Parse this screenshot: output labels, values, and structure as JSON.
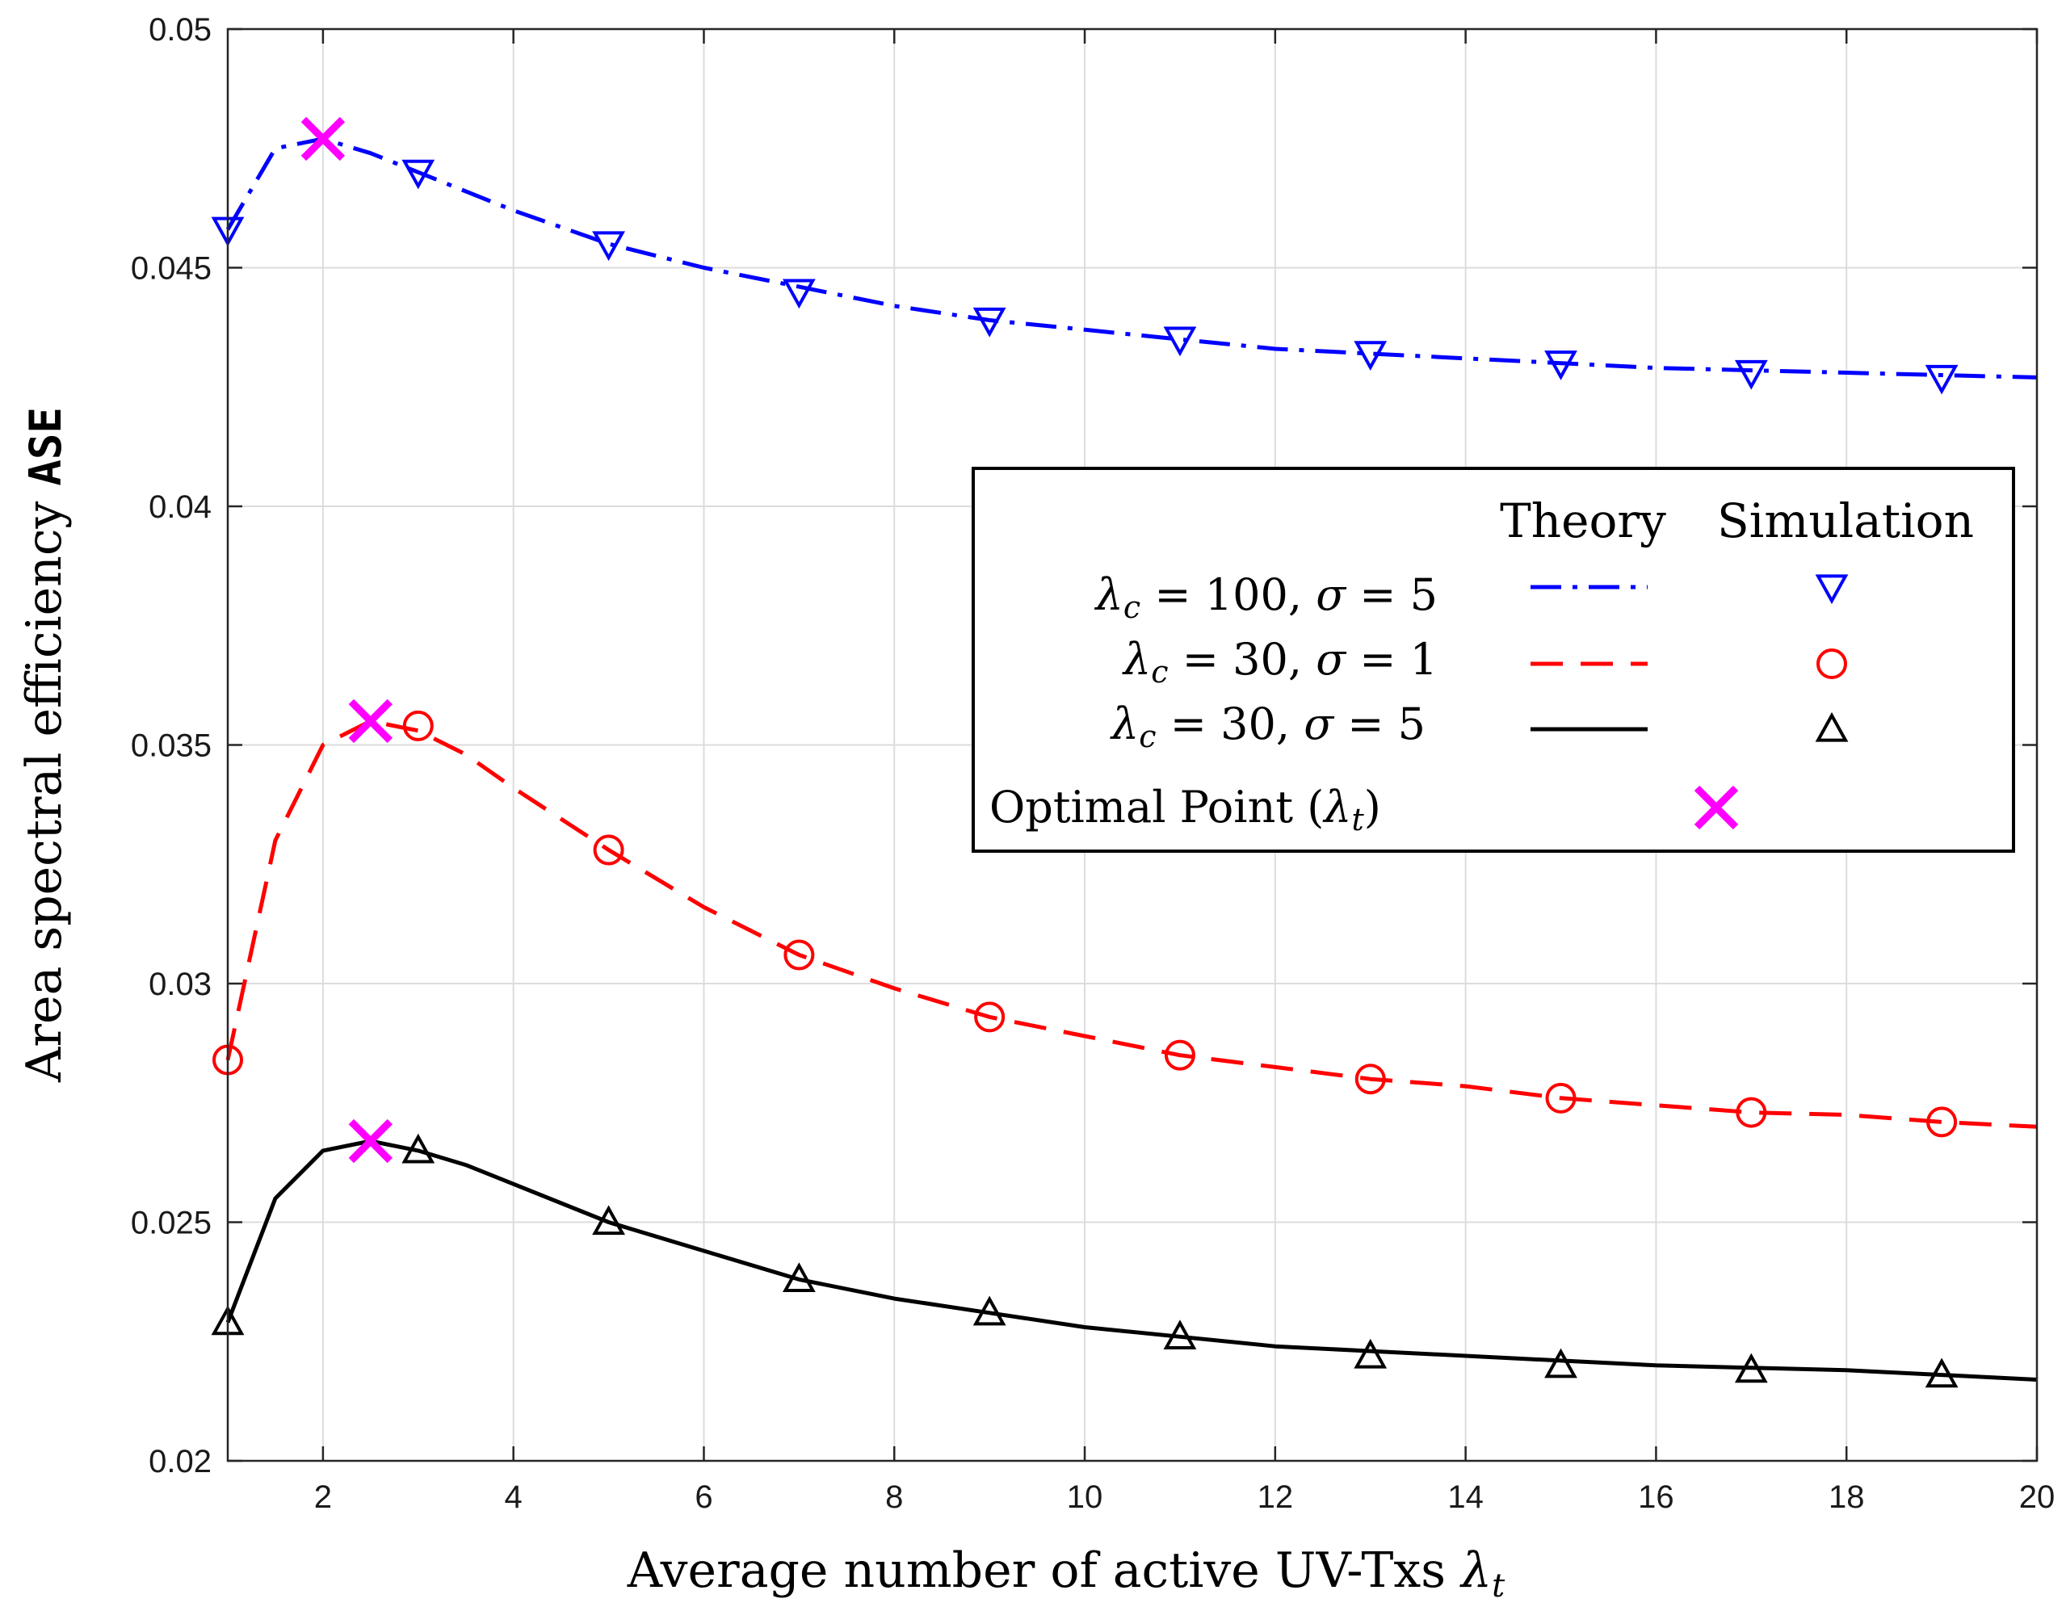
{
  "chart_data": {
    "type": "line",
    "title": "",
    "xlabel": "Average number of active UV-Txs",
    "xlabel_symbol": "λ",
    "xlabel_symbol_sub": "t",
    "ylabel": "Area spectral efficiency",
    "ylabel_mono": "ASE",
    "xlim": [
      1,
      20
    ],
    "ylim": [
      0.02,
      0.05
    ],
    "xticks": [
      2,
      4,
      6,
      8,
      10,
      12,
      14,
      16,
      18,
      20
    ],
    "yticks": [
      0.02,
      0.025,
      0.03,
      0.035,
      0.04,
      0.045,
      0.05
    ],
    "ytick_labels": [
      "0.02",
      "0.025",
      "0.03",
      "0.035",
      "0.04",
      "0.045",
      "0.05"
    ],
    "grid": true,
    "legend_position": "top-right",
    "legend_headers": {
      "theory": "Theory",
      "simulation": "Simulation"
    },
    "series": [
      {
        "name": "λc = 100, σ = 5",
        "legend_label": "λ_c = 100, σ = 5",
        "color": "#0000ff",
        "line_style": "dash-dot",
        "marker": "triangle-down",
        "theory_x": [
          1,
          1.5,
          2,
          2.5,
          3,
          3.5,
          4,
          5,
          6,
          7,
          8,
          9,
          10,
          11,
          12,
          13,
          14,
          15,
          16,
          17,
          18,
          19,
          20
        ],
        "theory_y": [
          0.0458,
          0.0475,
          0.0477,
          0.0474,
          0.047,
          0.0466,
          0.0462,
          0.0455,
          0.045,
          0.0446,
          0.0442,
          0.0439,
          0.0437,
          0.0435,
          0.0433,
          0.0432,
          0.0431,
          0.043,
          0.0429,
          0.04285,
          0.0428,
          0.04275,
          0.0427
        ],
        "sim_x": [
          1,
          3,
          5,
          7,
          9,
          11,
          13,
          15,
          17,
          19
        ],
        "sim_y": [
          0.0458,
          0.047,
          0.0455,
          0.0445,
          0.0439,
          0.0435,
          0.0432,
          0.043,
          0.0428,
          0.0427
        ]
      },
      {
        "name": "λc = 30, σ = 1",
        "legend_label": "λ_c = 30, σ = 1",
        "color": "#ff0000",
        "line_style": "dashed",
        "marker": "circle",
        "theory_x": [
          1,
          1.5,
          2,
          2.5,
          3,
          3.5,
          4,
          5,
          6,
          7,
          8,
          9,
          10,
          11,
          12,
          13,
          14,
          15,
          16,
          17,
          18,
          19,
          20
        ],
        "theory_y": [
          0.0284,
          0.033,
          0.035,
          0.0355,
          0.0353,
          0.0348,
          0.0341,
          0.0328,
          0.0316,
          0.0306,
          0.0299,
          0.0293,
          0.0289,
          0.0285,
          0.02825,
          0.028,
          0.02785,
          0.0276,
          0.02745,
          0.0273,
          0.02725,
          0.0271,
          0.027
        ],
        "sim_x": [
          1,
          3,
          5,
          7,
          9,
          11,
          13,
          15,
          17,
          19
        ],
        "sim_y": [
          0.0284,
          0.0354,
          0.0328,
          0.0306,
          0.0293,
          0.0285,
          0.028,
          0.0276,
          0.0273,
          0.0271
        ]
      },
      {
        "name": "λc = 30, σ = 5",
        "legend_label": "λ_c = 30, σ = 5",
        "color": "#000000",
        "line_style": "solid",
        "marker": "triangle-up",
        "theory_x": [
          1,
          1.5,
          2,
          2.5,
          3,
          3.5,
          4,
          5,
          6,
          7,
          8,
          9,
          10,
          11,
          12,
          13,
          14,
          15,
          16,
          17,
          18,
          19,
          20
        ],
        "theory_y": [
          0.0229,
          0.0255,
          0.0265,
          0.0267,
          0.0265,
          0.0262,
          0.0258,
          0.025,
          0.0244,
          0.0238,
          0.0234,
          0.0231,
          0.0228,
          0.0226,
          0.0224,
          0.0223,
          0.0222,
          0.0221,
          0.022,
          0.02195,
          0.0219,
          0.0218,
          0.0217
        ],
        "sim_x": [
          1,
          3,
          5,
          7,
          9,
          11,
          13,
          15,
          17,
          19
        ],
        "sim_y": [
          0.0229,
          0.0265,
          0.025,
          0.0238,
          0.0231,
          0.0226,
          0.0222,
          0.022,
          0.0219,
          0.0218
        ]
      }
    ],
    "optimal_points": {
      "legend_label": "Optimal Point (λt)",
      "legend_text": "Optimal Point (",
      "color": "#ff00ff",
      "marker": "x",
      "x": [
        2,
        2.5,
        2.5
      ],
      "y": [
        0.0477,
        0.0355,
        0.0267
      ]
    }
  }
}
